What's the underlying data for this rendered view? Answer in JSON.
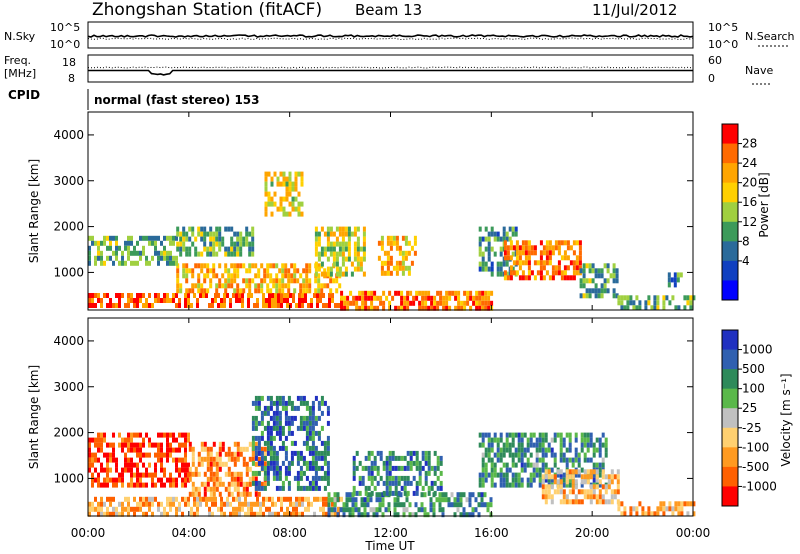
{
  "header": {
    "station": "Zhongshan Station (fitACF)",
    "beam": "Beam 13",
    "date": "11/Jul/2012"
  },
  "nsky_panel": {
    "left_label": "N.Sky",
    "right_label": "N.Search",
    "left_ticks": [
      "10^5",
      "10^0"
    ],
    "right_ticks": [
      "10^5",
      "10^0"
    ]
  },
  "freq_panel": {
    "left_label_1": "Freq.",
    "left_label_2": "[MHz]",
    "left_ticks": [
      "18",
      "8"
    ],
    "right_label": "Nave",
    "right_ticks": [
      "60",
      "0"
    ],
    "cpid_label": "CPID",
    "cpid_text": "normal (fast stereo) 153"
  },
  "x_axis": {
    "label": "Time UT",
    "ticks": [
      "00:00",
      "04:00",
      "08:00",
      "12:00",
      "16:00",
      "20:00",
      "00:00"
    ]
  },
  "chart_data": [
    {
      "type": "heatmap",
      "name": "power",
      "xlabel": "Time UT",
      "ylabel": "Slant Range [km]",
      "xlim_hours": [
        0,
        24
      ],
      "ylim": [
        180,
        4500
      ],
      "yticks": [
        "1000",
        "2000",
        "3000",
        "4000"
      ],
      "colorbar": {
        "label": "Power [dB]",
        "ticks": [
          "28",
          "24",
          "20",
          "16",
          "12",
          "8",
          "4"
        ],
        "colors": [
          "#ff0000",
          "#ff6a00",
          "#ffa500",
          "#ffd000",
          "#a0d040",
          "#3c9a5a",
          "#2a6a9a",
          "#1040c0",
          "#0000ff"
        ]
      },
      "regions": [
        {
          "t0": 0.0,
          "t1": 10.0,
          "r0": 250,
          "r1": 550,
          "level": 0.85
        },
        {
          "t0": 3.5,
          "t1": 10.0,
          "r0": 550,
          "r1": 1200,
          "level": 0.7
        },
        {
          "t0": 0.0,
          "t1": 3.5,
          "r0": 1200,
          "r1": 1800,
          "level": 0.4
        },
        {
          "t0": 3.5,
          "t1": 6.5,
          "r0": 1400,
          "r1": 2000,
          "level": 0.45
        },
        {
          "t0": 7.0,
          "t1": 8.5,
          "r0": 2300,
          "r1": 3200,
          "level": 0.6
        },
        {
          "t0": 9.0,
          "t1": 11.0,
          "r0": 1000,
          "r1": 2000,
          "level": 0.55
        },
        {
          "t0": 10.0,
          "t1": 16.0,
          "r0": 250,
          "r1": 600,
          "level": 0.8
        },
        {
          "t0": 11.5,
          "t1": 13.0,
          "r0": 1000,
          "r1": 1800,
          "level": 0.7
        },
        {
          "t0": 15.5,
          "t1": 17.0,
          "r0": 1000,
          "r1": 2000,
          "level": 0.35
        },
        {
          "t0": 16.5,
          "t1": 19.5,
          "r0": 900,
          "r1": 1700,
          "level": 0.8
        },
        {
          "t0": 19.5,
          "t1": 21.0,
          "r0": 500,
          "r1": 1200,
          "level": 0.4
        },
        {
          "t0": 21.0,
          "t1": 24.0,
          "r0": 250,
          "r1": 500,
          "level": 0.45
        },
        {
          "t0": 23.0,
          "t1": 23.5,
          "r0": 700,
          "r1": 1000,
          "level": 0.3
        }
      ]
    },
    {
      "type": "heatmap",
      "name": "velocity",
      "xlabel": "Time UT",
      "ylabel": "Slant Range [km]",
      "xlim_hours": [
        0,
        24
      ],
      "ylim": [
        180,
        4500
      ],
      "yticks": [
        "1000",
        "2000",
        "3000",
        "4000"
      ],
      "colorbar": {
        "label": "Velocity [m s⁻¹]",
        "ticks": [
          "1000",
          "500",
          "100",
          "25",
          "-25",
          "-100",
          "-500",
          "-1000"
        ],
        "colors": [
          "#2030c0",
          "#3060b0",
          "#2e8a5a",
          "#5ab84a",
          "#c0c0c0",
          "#ffd070",
          "#ff9a20",
          "#ff6000",
          "#ff0000"
        ]
      },
      "regions": [
        {
          "t0": 0.0,
          "t1": 4.0,
          "r0": 900,
          "r1": 2000,
          "level": 0.1
        },
        {
          "t0": 0.0,
          "t1": 10.0,
          "r0": 250,
          "r1": 600,
          "level": 0.3
        },
        {
          "t0": 4.0,
          "t1": 7.0,
          "r0": 600,
          "r1": 1800,
          "level": 0.25
        },
        {
          "t0": 6.5,
          "t1": 9.5,
          "r0": 800,
          "r1": 2800,
          "level": 0.8
        },
        {
          "t0": 9.5,
          "t1": 16.0,
          "r0": 250,
          "r1": 700,
          "level": 0.72
        },
        {
          "t0": 10.5,
          "t1": 14.0,
          "r0": 700,
          "r1": 1600,
          "level": 0.75
        },
        {
          "t0": 15.5,
          "t1": 20.5,
          "r0": 900,
          "r1": 2000,
          "level": 0.72
        },
        {
          "t0": 18.0,
          "t1": 21.0,
          "r0": 500,
          "r1": 1200,
          "level": 0.35
        },
        {
          "t0": 21.0,
          "t1": 24.0,
          "r0": 250,
          "r1": 500,
          "level": 0.3
        }
      ]
    }
  ]
}
